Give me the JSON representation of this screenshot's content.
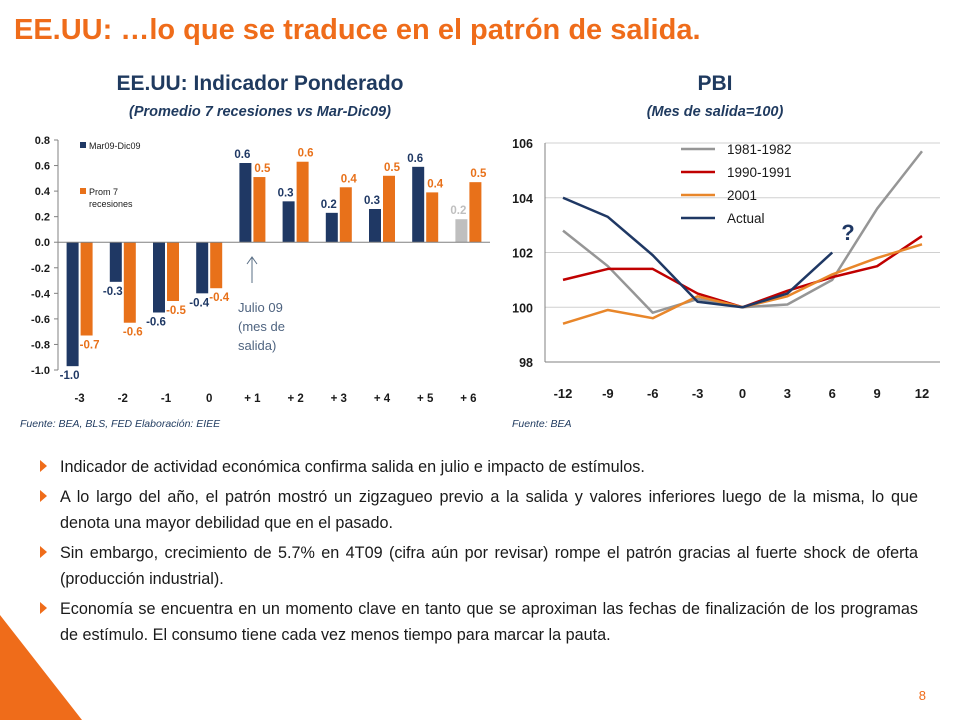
{
  "slide": {
    "title": "EE.UU: …lo que se traduce en el patrón de salida.",
    "page_number": "8",
    "accent_color": "#ef6c1a"
  },
  "left_chart": {
    "title": "EE.UU: Indicador Ponderado",
    "subtitle": "(Promedio 7 recesiones vs Mar-Dic09)",
    "source": "Fuente: BEA, BLS, FED Elaboración: EIEE",
    "annotation_lines": [
      "Julio 09",
      "(mes de",
      "salida)"
    ]
  },
  "right_chart": {
    "title": "PBI",
    "subtitle": "(Mes de salida=100)",
    "source": "Fuente:  BEA",
    "annotation": "?"
  },
  "chart_data": [
    {
      "type": "bar",
      "categories": [
        "-3",
        "-2",
        "-1",
        "0",
        "+ 1",
        "+ 2",
        "+ 3",
        "+ 4",
        "+ 5",
        "+ 6"
      ],
      "ylim": [
        -1.0,
        0.8
      ],
      "yticks": [
        "0.8",
        "0.6",
        "0.4",
        "0.2",
        "0.0",
        "-0.2",
        "-0.4",
        "-0.6",
        "-0.8",
        "-1.0"
      ],
      "grid": false,
      "legend_position": "top-left",
      "series": [
        {
          "name": "Mar09-Dic09",
          "color": "#1f3864",
          "values": [
            -0.97,
            -0.31,
            -0.55,
            -0.4,
            0.62,
            0.32,
            0.23,
            0.26,
            0.59,
            0.18
          ],
          "labels": [
            "-1.0",
            "-0.3",
            "-0.6",
            "-0.4",
            "0.6",
            "0.3",
            "0.2",
            "0.3",
            "0.6",
            "0.2"
          ],
          "highlight_last_color": "#bfbfbf"
        },
        {
          "name": "Prom 7 recesiones",
          "color": "#e8711a",
          "values": [
            -0.73,
            -0.63,
            -0.46,
            -0.36,
            0.51,
            0.63,
            0.43,
            0.52,
            0.39,
            0.47
          ],
          "labels": [
            "-0.7",
            "-0.6",
            "-0.5",
            "-0.4",
            "0.5",
            "0.6",
            "0.4",
            "0.5",
            "0.4",
            "0.5"
          ]
        }
      ]
    },
    {
      "type": "line",
      "x": [
        -12,
        -9,
        -6,
        -3,
        0,
        3,
        6,
        9,
        12
      ],
      "xticks": [
        "-12",
        "-9",
        "-6",
        "-3",
        "0",
        "3",
        "6",
        "9",
        "12"
      ],
      "ylim": [
        98,
        106
      ],
      "yticks": [
        "106",
        "104",
        "102",
        "100",
        "98"
      ],
      "grid": true,
      "legend_position": "top-left",
      "series": [
        {
          "name": "1981-1982",
          "color": "#969696",
          "values": [
            102.8,
            101.5,
            99.8,
            100.3,
            100.0,
            100.1,
            101.0,
            103.6,
            105.7
          ]
        },
        {
          "name": "1990-1991",
          "color": "#c00000",
          "values": [
            101.0,
            101.4,
            101.4,
            100.5,
            100.0,
            100.6,
            101.1,
            101.5,
            102.6
          ]
        },
        {
          "name": "2001",
          "color": "#e8862a",
          "values": [
            99.4,
            99.9,
            99.6,
            100.4,
            100.0,
            100.4,
            101.2,
            101.8,
            102.3
          ]
        },
        {
          "name": "Actual",
          "color": "#1f3864",
          "values": [
            104.0,
            103.3,
            101.9,
            100.2,
            100.0,
            100.5,
            102.0,
            null,
            null
          ]
        }
      ]
    }
  ],
  "bullets": [
    "Indicador de actividad económica confirma salida en julio e impacto de estímulos.",
    "A lo largo del año, el patrón mostró un zigzagueo previo a la salida y valores inferiores luego de la misma, lo que denota una mayor debilidad que en el pasado.",
    "Sin embargo, crecimiento de 5.7% en 4T09 (cifra aún por revisar) rompe el patrón gracias al fuerte shock de oferta (producción industrial).",
    "Economía se encuentra en un momento clave en tanto que se aproximan las fechas de finalización de los programas de estímulo. El consumo tiene cada vez menos tiempo para marcar la pauta."
  ]
}
